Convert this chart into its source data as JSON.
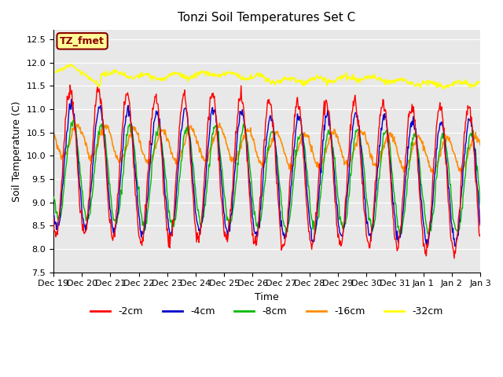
{
  "title": "Tonzi Soil Temperatures Set C",
  "xlabel": "Time",
  "ylabel": "Soil Temperature (C)",
  "ylim": [
    7.5,
    12.7
  ],
  "annotation_text": "TZ_fmet",
  "annotation_color": "#8B0000",
  "annotation_bg": "#FFFF99",
  "annotation_border": "#8B0000",
  "legend_labels": [
    "-2cm",
    "-4cm",
    "-8cm",
    "-16cm",
    "-32cm"
  ],
  "line_colors": [
    "#FF0000",
    "#0000CC",
    "#00BB00",
    "#FF8C00",
    "#FFFF00"
  ],
  "bg_color": "#E8E8E8",
  "tick_labels": [
    "Dec 19",
    "Dec 20",
    "Dec 21",
    "Dec 22",
    "Dec 23",
    "Dec 24",
    "Dec 25",
    "Dec 26",
    "Dec 27",
    "Dec 28",
    "Dec 29",
    "Dec 30",
    "Dec 31",
    "Jan 1",
    "Jan 2",
    "Jan 3"
  ],
  "yticks": [
    7.5,
    8.0,
    8.5,
    9.0,
    9.5,
    10.0,
    10.5,
    11.0,
    11.5,
    12.0,
    12.5
  ]
}
